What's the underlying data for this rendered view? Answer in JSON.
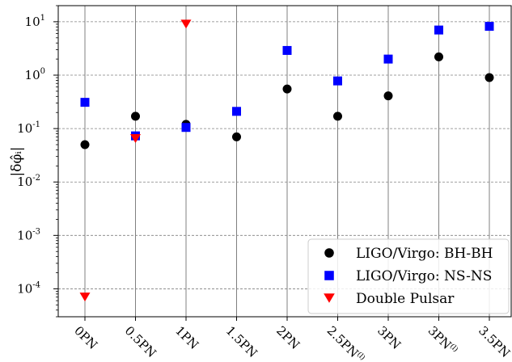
{
  "chart_data": {
    "type": "scatter",
    "categories": [
      "0PN",
      "0.5PN",
      "1PN",
      "1.5PN",
      "2PN",
      "2.5PN",
      "3PN",
      "3PN",
      "3.5PN"
    ],
    "category_superscripts": [
      "",
      "",
      "",
      "",
      "",
      "(l)",
      "",
      "(l)",
      ""
    ],
    "yscale": "log",
    "ylim": [
      3e-05,
      20
    ],
    "ylabel": "|δφ̂ᵢ|",
    "xlabel": "",
    "title": "",
    "grid": {
      "vertical": true,
      "horizontal": "dashed-at-decades"
    },
    "legend_position": "bottom-right",
    "y_tick_labels": [
      {
        "base": "10",
        "exp": "-4",
        "value": 0.0001
      },
      {
        "base": "10",
        "exp": "-3",
        "value": 0.001
      },
      {
        "base": "10",
        "exp": "-2",
        "value": 0.01
      },
      {
        "base": "10",
        "exp": "-1",
        "value": 0.1
      },
      {
        "base": "10",
        "exp": "0",
        "value": 1
      },
      {
        "base": "10",
        "exp": "1",
        "value": 10
      }
    ],
    "series": [
      {
        "name": "LIGO/Virgo: BH-BH",
        "marker": "circle",
        "color": "#000000",
        "values": [
          0.05,
          0.17,
          0.12,
          0.07,
          0.55,
          0.17,
          0.41,
          2.2,
          0.9
        ]
      },
      {
        "name": "LIGO/Virgo: NS-NS",
        "marker": "square",
        "color": "#0000ff",
        "values": [
          0.31,
          0.073,
          0.105,
          0.21,
          2.9,
          0.78,
          2.0,
          7.0,
          8.2
        ]
      },
      {
        "name": "Double Pulsar",
        "marker": "triangle-down",
        "color": "#ff0000",
        "values": [
          7e-05,
          0.065,
          9.0,
          null,
          null,
          null,
          null,
          null,
          null
        ]
      }
    ]
  }
}
